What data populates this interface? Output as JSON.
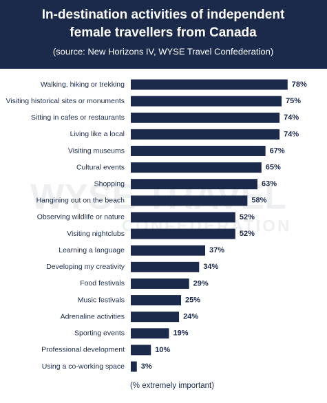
{
  "chart_data": {
    "type": "bar",
    "orientation": "horizontal",
    "title": [
      "In-destination activities of independent",
      "female travellers from Canada"
    ],
    "subtitle": "(source: New Horizons IV, WYSE Travel Confederation)",
    "x_label": "(% extremely important)",
    "watermark": [
      "WYSE TRAVEL",
      "CONFEDERATION"
    ],
    "color": "#1b2a4b",
    "categories": [
      "Walking, hiking or trekking",
      "Visiting historical sites or monuments",
      "Sitting in cafes or restaurants",
      "Living like a local",
      "Visiting museums",
      "Cultural events",
      "Shopping",
      "Hangining out on the beach",
      "Observing wildlife or nature",
      "Visiting nightclubs",
      "Learning a language",
      "Developing my creativity",
      "Food festivals",
      "Music festivals",
      "Adrenaline activities",
      "Sporting events",
      "Professional development",
      "Using a co-working space"
    ],
    "values": [
      78,
      75,
      74,
      74,
      67,
      65,
      63,
      58,
      52,
      52,
      37,
      34,
      29,
      25,
      24,
      19,
      10,
      3
    ],
    "value_labels": [
      "78%",
      "75%",
      "74%",
      "74%",
      "67%",
      "65%",
      "63%",
      "58%",
      "52%",
      "52%",
      "37%",
      "34%",
      "29%",
      "25%",
      "24%",
      "19%",
      "10%",
      "3%"
    ]
  }
}
